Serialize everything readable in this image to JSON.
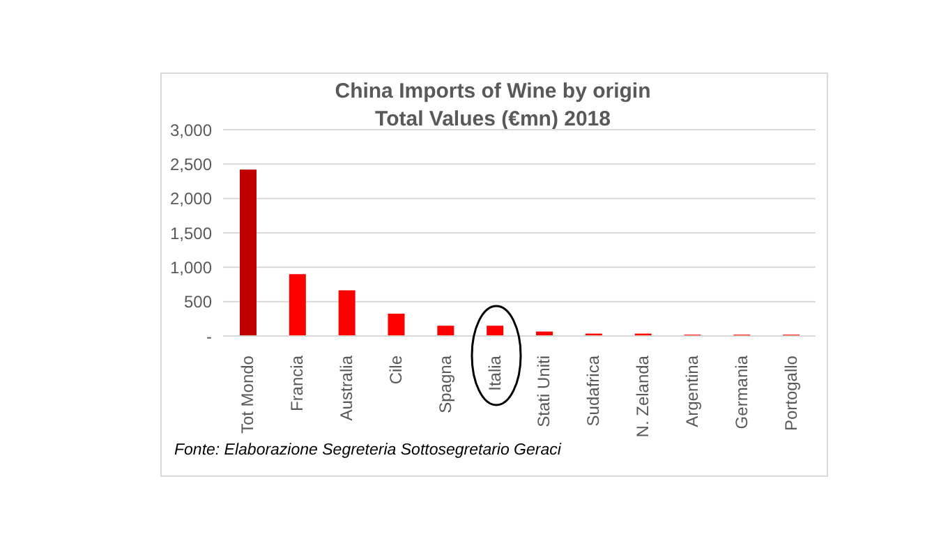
{
  "chart_data": {
    "type": "bar",
    "title": "China Imports of Wine by origin",
    "subtitle": "Total Values (€mn) 2018",
    "categories": [
      "Tot Mondo",
      "Francia",
      "Australia",
      "Cile",
      "Spagna",
      "Italia",
      "Stati Uniti",
      "Sudafrica",
      "N. Zelanda",
      "Argentina",
      "Germania",
      "Portogallo"
    ],
    "values": [
      2420,
      900,
      665,
      325,
      150,
      150,
      65,
      35,
      35,
      20,
      20,
      20
    ],
    "colors": [
      "#c00000",
      "#ff0000",
      "#ff0000",
      "#ff0000",
      "#ff0000",
      "#ff0000",
      "#ff0000",
      "#ff0000",
      "#ff0000",
      "#ff0000",
      "#ff0000",
      "#ff0000"
    ],
    "ylim": [
      0,
      3000
    ],
    "yticks": [
      {
        "value": 0,
        "label": "-"
      },
      {
        "value": 500,
        "label": "500"
      },
      {
        "value": 1000,
        "label": "1,000"
      },
      {
        "value": 1500,
        "label": "1,500"
      },
      {
        "value": 2000,
        "label": "2,000"
      },
      {
        "value": 2500,
        "label": "2,500"
      },
      {
        "value": 3000,
        "label": "3,000"
      }
    ],
    "grid": "y",
    "legend": false,
    "annotations": [
      "Fonte: Elaborazione Segreteria Sottosegretario Geraci"
    ]
  }
}
